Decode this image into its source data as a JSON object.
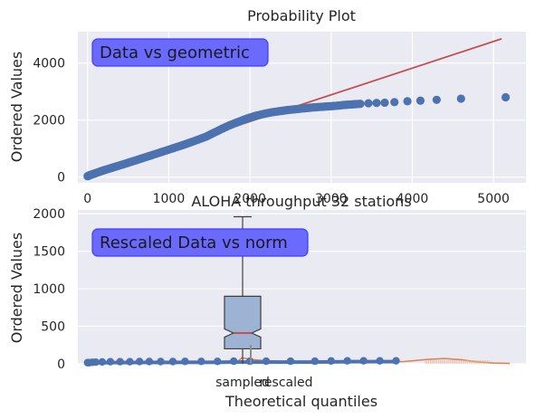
{
  "chart_data": [
    {
      "type": "scatter",
      "title": "Probability Plot",
      "xlabel": "ALOHA throughput 32 stations",
      "ylabel": "Ordered Values",
      "annotation": "Data vs geometric",
      "xlim": [
        -120,
        5400
      ],
      "ylim": [
        -200,
        5100
      ],
      "xticks": [
        0,
        1000,
        2000,
        3000,
        4000,
        5000
      ],
      "yticks": [
        0,
        2000,
        4000
      ],
      "grid": true,
      "colors": {
        "points": "#4c72b0",
        "fit_line": "#c44e52",
        "annotation_bg": "#6a6aff",
        "annotation_edge": "#3d3dff"
      },
      "points": [
        [
          0,
          30
        ],
        [
          20,
          60
        ],
        [
          50,
          90
        ],
        [
          90,
          130
        ],
        [
          140,
          180
        ],
        [
          200,
          240
        ],
        [
          270,
          300
        ],
        [
          350,
          370
        ],
        [
          440,
          450
        ],
        [
          540,
          540
        ],
        [
          650,
          640
        ],
        [
          770,
          750
        ],
        [
          900,
          870
        ],
        [
          1040,
          1000
        ],
        [
          1180,
          1130
        ],
        [
          1320,
          1270
        ],
        [
          1460,
          1420
        ],
        [
          1560,
          1560
        ],
        [
          1660,
          1700
        ],
        [
          1760,
          1830
        ],
        [
          1860,
          1940
        ],
        [
          1960,
          2050
        ],
        [
          2060,
          2140
        ],
        [
          2160,
          2210
        ],
        [
          2260,
          2270
        ],
        [
          2360,
          2310
        ],
        [
          2460,
          2350
        ],
        [
          2560,
          2380
        ],
        [
          2660,
          2410
        ],
        [
          2760,
          2440
        ],
        [
          2860,
          2460
        ],
        [
          2960,
          2480
        ],
        [
          3060,
          2500
        ],
        [
          3160,
          2530
        ],
        [
          3260,
          2550
        ],
        [
          3360,
          2570
        ],
        [
          3460,
          2590
        ],
        [
          3560,
          2600
        ],
        [
          3660,
          2610
        ],
        [
          3780,
          2630
        ],
        [
          3940,
          2660
        ],
        [
          4100,
          2680
        ],
        [
          4300,
          2710
        ],
        [
          4600,
          2750
        ],
        [
          5150,
          2800
        ]
      ],
      "fit_line": {
        "x": [
          0,
          5100
        ],
        "y": [
          80,
          4850
        ]
      }
    },
    {
      "type": "boxplot",
      "xlabel": "Theoretical quantiles",
      "ylabel": "Ordered Values",
      "annotation": "Rescaled Data vs norm",
      "categories": [
        "sampled",
        "rescaled"
      ],
      "ylim": [
        0,
        2050
      ],
      "yticks": [
        0,
        500,
        1000,
        1500,
        2000
      ],
      "grid": true,
      "colors": {
        "box_fill": "#9db3d3",
        "median": "#c44e52",
        "points": "#4c72b0",
        "violin": "#dd8452",
        "annotation_bg": "#6a6aff",
        "annotation_edge": "#3d3dff"
      },
      "box": {
        "whisker_low": 0,
        "q1": 200,
        "median": 410,
        "q3": 900,
        "whisker_high": 1960,
        "notch_low": 355,
        "notch_high": 465
      },
      "points": [
        [
          0,
          15
        ],
        [
          20,
          15
        ],
        [
          60,
          20
        ],
        [
          100,
          22
        ],
        [
          180,
          25
        ],
        [
          280,
          28
        ],
        [
          400,
          28
        ],
        [
          520,
          28
        ],
        [
          640,
          30
        ],
        [
          760,
          30
        ],
        [
          900,
          30
        ],
        [
          1050,
          30
        ],
        [
          1200,
          32
        ],
        [
          1400,
          32
        ],
        [
          1600,
          32
        ],
        [
          1800,
          35
        ],
        [
          2000,
          35
        ],
        [
          2200,
          35
        ],
        [
          2500,
          35
        ],
        [
          2800,
          35
        ],
        [
          3000,
          38
        ],
        [
          3200,
          40
        ],
        [
          3400,
          40
        ],
        [
          3600,
          40
        ],
        [
          3800,
          40
        ]
      ],
      "orange_curve": [
        [
          1820,
          0
        ],
        [
          1900,
          80
        ],
        [
          2000,
          60
        ],
        [
          2200,
          40
        ],
        [
          2500,
          30
        ],
        [
          3000,
          25
        ],
        [
          3500,
          20
        ],
        [
          3900,
          30
        ],
        [
          4200,
          60
        ],
        [
          4400,
          70
        ],
        [
          4600,
          55
        ],
        [
          4800,
          25
        ],
        [
          5000,
          10
        ],
        [
          5200,
          5
        ]
      ]
    }
  ]
}
